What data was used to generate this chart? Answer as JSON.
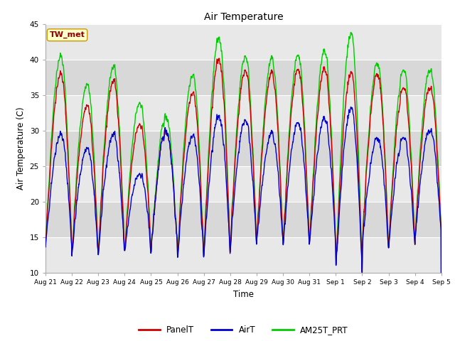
{
  "title": "Air Temperature",
  "ylabel": "Air Temperature (C)",
  "xlabel": "Time",
  "annotation": "TW_met",
  "ylim": [
    10,
    45
  ],
  "yticks": [
    10,
    15,
    20,
    25,
    30,
    35,
    40,
    45
  ],
  "background_color": "#ffffff",
  "plot_bg_color": "#f0f0f0",
  "grid_color": "#ffffff",
  "colors": {
    "PanelT": "#cc0000",
    "AirT": "#0000cc",
    "AM25T_PRT": "#00cc00"
  },
  "n_days": 15,
  "figsize": [
    6.4,
    4.8
  ],
  "dpi": 100,
  "band_colors": [
    "#e8e8e8",
    "#d8d8d8"
  ]
}
